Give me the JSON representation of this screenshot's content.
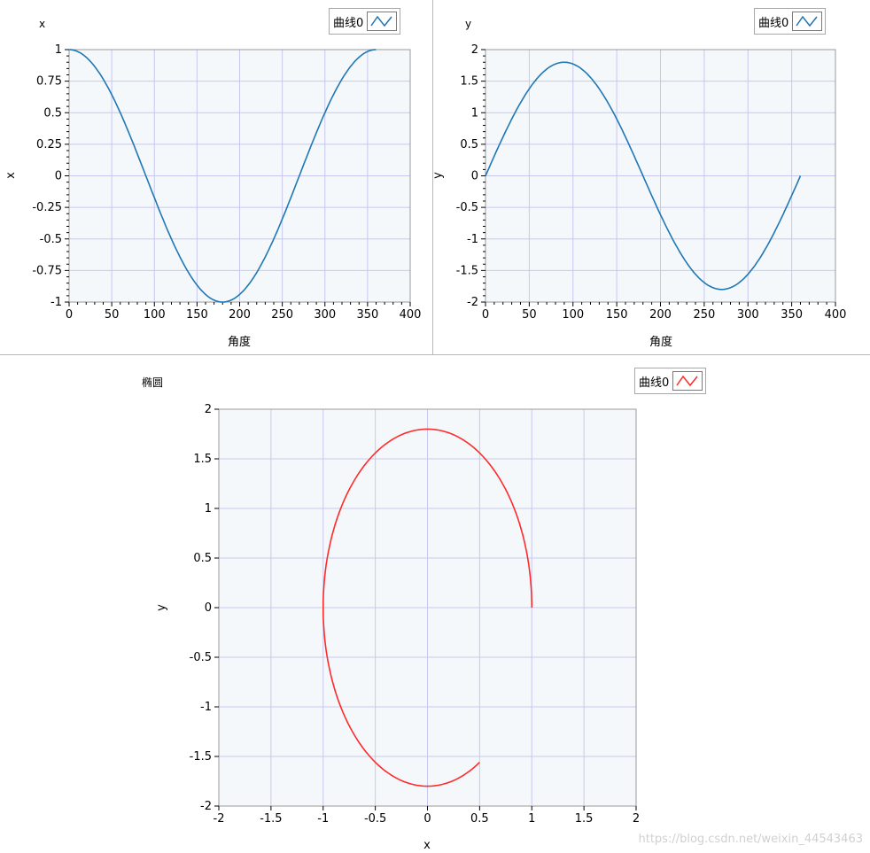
{
  "chart_data": [
    {
      "type": "line",
      "title": "x",
      "xlabel": "角度",
      "ylabel": "x",
      "xlim": [
        0,
        400
      ],
      "ylim": [
        -1,
        1
      ],
      "xticks": [
        "0",
        "50",
        "100",
        "150",
        "200",
        "250",
        "300",
        "350",
        "400"
      ],
      "yticks": [
        "1",
        "0.75",
        "0.5",
        "0.25",
        "0",
        "-0.25",
        "-0.5",
        "-0.75",
        "-1"
      ],
      "grid": true,
      "legend": "top-right",
      "series": [
        {
          "name": "曲线0",
          "color": "#1f77b4",
          "function": "cos",
          "amplitude": 1,
          "x_range": [
            0,
            360
          ]
        }
      ]
    },
    {
      "type": "line",
      "title": "y",
      "xlabel": "角度",
      "ylabel": "y",
      "xlim": [
        0,
        400
      ],
      "ylim": [
        -2,
        2
      ],
      "xticks": [
        "0",
        "50",
        "100",
        "150",
        "200",
        "250",
        "300",
        "350",
        "400"
      ],
      "yticks": [
        "2",
        "1.5",
        "1",
        "0.5",
        "0",
        "-0.5",
        "-1",
        "-1.5",
        "-2"
      ],
      "grid": true,
      "legend": "top-right",
      "series": [
        {
          "name": "曲线0",
          "color": "#1f77b4",
          "function": "sin",
          "amplitude": 1.8,
          "x_range": [
            0,
            360
          ]
        }
      ]
    },
    {
      "type": "line",
      "title": "椭圆",
      "xlabel": "x",
      "ylabel": "y",
      "xlim": [
        -2,
        2
      ],
      "ylim": [
        -2,
        2
      ],
      "xticks": [
        "-2",
        "-1.5",
        "-1",
        "-0.5",
        "0",
        "0.5",
        "1",
        "1.5",
        "2"
      ],
      "yticks": [
        "2",
        "1.5",
        "1",
        "0.5",
        "0",
        "-0.5",
        "-1",
        "-1.5",
        "-2"
      ],
      "grid": true,
      "legend": "top-right",
      "series": [
        {
          "name": "曲线0",
          "color": "#ff2a2a",
          "param": "ellipse",
          "a": 1,
          "b": 1.8,
          "t_range_deg": [
            0,
            300
          ]
        }
      ]
    }
  ],
  "legend_label": "曲线0",
  "watermark": "https://blog.csdn.net/weixin_44543463"
}
